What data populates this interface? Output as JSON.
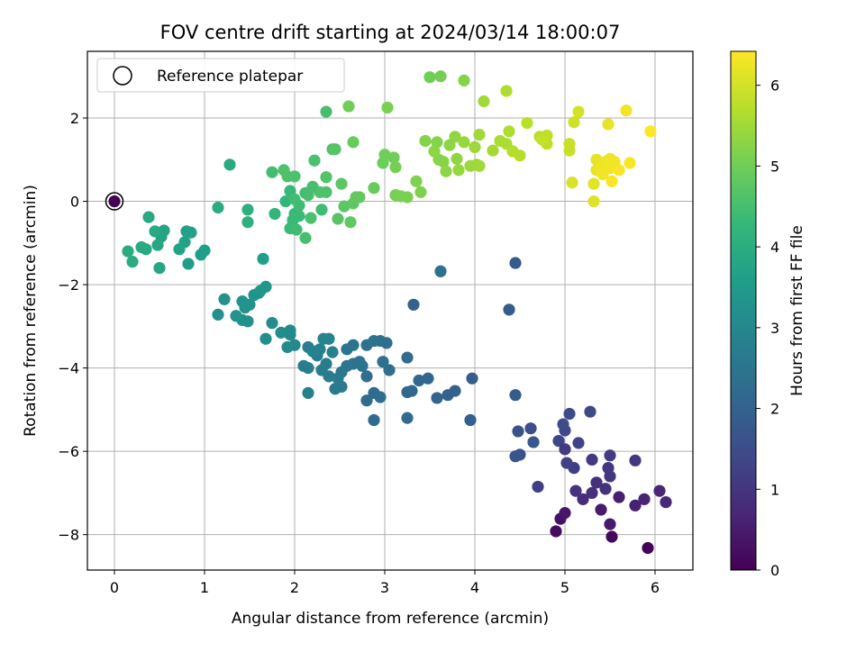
{
  "chart_data": {
    "type": "scatter",
    "title": "FOV centre drift starting at 2024/03/14 18:00:07",
    "xlabel": "Angular distance from reference (arcmin)",
    "ylabel": "Rotation from reference (arcmin)",
    "xlim": [
      -0.3,
      6.42
    ],
    "ylim": [
      -8.85,
      3.6
    ],
    "xticks": [
      0,
      1,
      2,
      3,
      4,
      5,
      6
    ],
    "yticks": [
      -8,
      -6,
      -4,
      -2,
      0,
      2
    ],
    "grid": true,
    "legend": {
      "placement": "top-left",
      "label": "Reference platepar"
    },
    "colorbar": {
      "label": "Hours from first FF file",
      "min": 0,
      "max": 6.42,
      "ticks": [
        0,
        1,
        2,
        3,
        4,
        5,
        6
      ],
      "colormap": "viridis"
    },
    "reference_point": {
      "x": 0,
      "y": 0
    },
    "point_color_stops": [
      "#440154",
      "#482878",
      "#3e4a89",
      "#31688e",
      "#26828e",
      "#1f9e89",
      "#35b779",
      "#6ece58",
      "#b5de2b",
      "#fde725"
    ],
    "series": [
      {
        "points": [
          [
            5.92,
            -8.32
          ],
          [
            5.52,
            -8.05
          ],
          [
            4.9,
            -7.92
          ],
          [
            4.95,
            -7.62
          ],
          [
            5.0,
            -7.48
          ],
          [
            5.5,
            -7.75
          ],
          [
            5.4,
            -7.4
          ],
          [
            5.6,
            -7.1
          ],
          [
            5.78,
            -7.3
          ],
          [
            5.88,
            -7.15
          ],
          [
            6.05,
            -6.95
          ],
          [
            6.12,
            -7.22
          ],
          [
            5.2,
            -7.15
          ],
          [
            5.3,
            -7.0
          ],
          [
            5.45,
            -6.9
          ],
          [
            5.12,
            -6.95
          ],
          [
            5.5,
            -6.6
          ],
          [
            5.48,
            -6.4
          ],
          [
            5.3,
            -6.2
          ],
          [
            5.5,
            -6.1
          ],
          [
            5.1,
            -6.4
          ],
          [
            5.02,
            -6.28
          ],
          [
            5.15,
            -5.8
          ],
          [
            4.93,
            -5.75
          ],
          [
            5.0,
            -5.5
          ],
          [
            5.05,
            -5.1
          ],
          [
            4.98,
            -5.35
          ],
          [
            4.62,
            -5.45
          ],
          [
            4.48,
            -5.52
          ],
          [
            4.5,
            -6.08
          ],
          [
            4.45,
            -6.12
          ],
          [
            4.65,
            -5.78
          ],
          [
            5.28,
            -5.05
          ],
          [
            5.78,
            -6.22
          ],
          [
            4.7,
            -6.85
          ],
          [
            5.35,
            -6.75
          ],
          [
            5.0,
            -5.95
          ]
        ],
        "hours": [
          0.05,
          0.15,
          0.2,
          0.3,
          0.4,
          0.45,
          0.5,
          0.55,
          0.6,
          0.65,
          0.7,
          0.75,
          0.8,
          0.85,
          0.9,
          0.95,
          1.0,
          1.05,
          1.1,
          1.15,
          1.2,
          1.25,
          1.3,
          1.35,
          1.4,
          1.45,
          1.5,
          1.55,
          1.6,
          1.65,
          1.7,
          1.75,
          1.4,
          1.0,
          1.2,
          0.9,
          1.1
        ]
      },
      {
        "points": [
          [
            4.45,
            -4.65
          ],
          [
            3.97,
            -4.25
          ],
          [
            3.95,
            -5.25
          ],
          [
            3.7,
            -4.65
          ],
          [
            3.78,
            -4.55
          ],
          [
            3.58,
            -4.72
          ],
          [
            3.48,
            -4.25
          ],
          [
            3.38,
            -4.3
          ],
          [
            3.3,
            -4.55
          ],
          [
            3.25,
            -4.58
          ],
          [
            3.25,
            -5.2
          ],
          [
            2.88,
            -5.25
          ],
          [
            2.8,
            -4.78
          ],
          [
            2.88,
            -4.6
          ],
          [
            2.95,
            -4.7
          ],
          [
            3.05,
            -4.05
          ],
          [
            2.98,
            -3.85
          ],
          [
            3.02,
            -3.4
          ],
          [
            2.95,
            -3.35
          ],
          [
            2.8,
            -3.45
          ],
          [
            2.88,
            -3.35
          ],
          [
            2.65,
            -3.45
          ],
          [
            2.58,
            -3.55
          ],
          [
            2.65,
            -3.9
          ],
          [
            2.58,
            -3.95
          ],
          [
            2.52,
            -4.1
          ],
          [
            2.48,
            -4.25
          ],
          [
            2.45,
            -4.5
          ],
          [
            2.52,
            -4.45
          ],
          [
            2.38,
            -4.2
          ],
          [
            2.35,
            -3.9
          ],
          [
            2.3,
            -4.05
          ],
          [
            2.25,
            -3.7
          ],
          [
            2.15,
            -3.5
          ],
          [
            2.15,
            -4.0
          ],
          [
            2.15,
            -4.6
          ],
          [
            2.2,
            -3.6
          ],
          [
            2.28,
            -3.55
          ],
          [
            2.38,
            -3.3
          ],
          [
            2.32,
            -3.3
          ],
          [
            2.72,
            -3.85
          ],
          [
            2.75,
            -3.95
          ],
          [
            2.8,
            -4.2
          ],
          [
            3.25,
            -3.75
          ],
          [
            3.32,
            -2.48
          ],
          [
            3.62,
            -1.68
          ],
          [
            4.38,
            -2.6
          ],
          [
            4.45,
            -1.48
          ],
          [
            2.1,
            -3.95
          ],
          [
            2.42,
            -3.62
          ]
        ],
        "hours": [
          1.85,
          1.9,
          1.95,
          2.0,
          2.0,
          2.05,
          2.1,
          2.1,
          2.15,
          2.15,
          2.2,
          2.2,
          2.25,
          2.25,
          2.3,
          2.3,
          2.35,
          2.35,
          2.4,
          2.4,
          2.45,
          2.45,
          2.5,
          2.5,
          2.55,
          2.55,
          2.6,
          2.6,
          2.65,
          2.65,
          2.7,
          2.7,
          2.75,
          2.75,
          2.8,
          2.8,
          2.85,
          2.85,
          2.9,
          2.9,
          2.5,
          2.45,
          2.3,
          2.2,
          2.0,
          2.4,
          1.85,
          1.8,
          2.7,
          2.8
        ]
      },
      {
        "points": [
          [
            1.95,
            -3.2
          ],
          [
            2.0,
            -3.45
          ],
          [
            1.92,
            -3.5
          ],
          [
            1.95,
            -3.1
          ],
          [
            1.85,
            -3.15
          ],
          [
            1.75,
            -2.92
          ],
          [
            1.68,
            -3.3
          ],
          [
            1.48,
            -2.88
          ],
          [
            1.42,
            -2.85
          ],
          [
            1.45,
            -2.55
          ],
          [
            1.5,
            -2.48
          ],
          [
            1.42,
            -2.4
          ],
          [
            1.35,
            -2.75
          ],
          [
            1.55,
            -2.25
          ],
          [
            1.6,
            -2.2
          ],
          [
            1.62,
            -2.15
          ],
          [
            1.68,
            -2.05
          ],
          [
            1.65,
            -1.38
          ],
          [
            1.22,
            -2.35
          ],
          [
            1.15,
            -2.72
          ]
        ],
        "hours": [
          3.0,
          3.0,
          3.05,
          3.05,
          3.1,
          3.1,
          3.15,
          3.2,
          3.2,
          3.25,
          3.25,
          3.3,
          3.3,
          3.35,
          3.35,
          3.4,
          3.4,
          3.6,
          3.3,
          3.2
        ]
      },
      {
        "points": [
          [
            0.82,
            -1.5
          ],
          [
            1.0,
            -1.18
          ],
          [
            0.96,
            -1.28
          ],
          [
            0.8,
            -0.72
          ],
          [
            0.85,
            -0.75
          ],
          [
            0.72,
            -1.15
          ],
          [
            0.78,
            -0.98
          ],
          [
            0.55,
            -0.7
          ],
          [
            0.52,
            -0.85
          ],
          [
            0.48,
            -1.05
          ],
          [
            0.5,
            -1.6
          ],
          [
            0.45,
            -0.72
          ],
          [
            0.38,
            -0.38
          ],
          [
            0.35,
            -1.15
          ],
          [
            0.3,
            -1.1
          ],
          [
            0.2,
            -1.45
          ],
          [
            0.15,
            -1.2
          ],
          [
            1.15,
            -0.15
          ],
          [
            1.48,
            -0.2
          ],
          [
            1.48,
            -0.5
          ],
          [
            1.28,
            0.88
          ]
        ],
        "hours": [
          3.55,
          3.6,
          3.6,
          3.65,
          3.65,
          3.7,
          3.7,
          3.75,
          3.75,
          3.8,
          3.8,
          3.85,
          3.85,
          3.9,
          3.9,
          3.95,
          3.95,
          4.0,
          4.05,
          4.1,
          3.9
        ]
      },
      {
        "points": [
          [
            1.78,
            -0.3
          ],
          [
            1.9,
            0.0
          ],
          [
            1.95,
            0.25
          ],
          [
            2.0,
            -0.3
          ],
          [
            1.98,
            -0.45
          ],
          [
            1.95,
            -0.65
          ],
          [
            2.02,
            -0.68
          ],
          [
            2.05,
            -0.1
          ],
          [
            2.0,
            0.05
          ],
          [
            2.12,
            0.2
          ],
          [
            2.12,
            -0.88
          ],
          [
            2.15,
            0.15
          ],
          [
            2.18,
            -0.4
          ],
          [
            2.22,
            0.98
          ],
          [
            2.28,
            0.22
          ],
          [
            2.35,
            0.22
          ],
          [
            2.35,
            0.58
          ],
          [
            2.42,
            1.25
          ],
          [
            2.45,
            1.25
          ],
          [
            2.48,
            -0.42
          ],
          [
            2.52,
            0.42
          ],
          [
            2.55,
            -0.12
          ],
          [
            2.62,
            -0.5
          ],
          [
            2.65,
            -0.05
          ],
          [
            2.68,
            0.1
          ],
          [
            2.72,
            0.1
          ],
          [
            2.6,
            2.28
          ],
          [
            2.65,
            1.42
          ],
          [
            2.35,
            2.15
          ],
          [
            1.88,
            0.75
          ],
          [
            1.92,
            0.6
          ],
          [
            2.0,
            0.6
          ],
          [
            1.75,
            0.7
          ],
          [
            2.05,
            -0.35
          ],
          [
            2.2,
            0.35
          ],
          [
            2.3,
            -0.2
          ]
        ],
        "hours": [
          4.2,
          4.25,
          4.3,
          4.3,
          4.35,
          4.35,
          4.4,
          4.4,
          4.45,
          4.45,
          4.5,
          4.5,
          4.55,
          4.55,
          4.6,
          4.6,
          4.65,
          4.65,
          4.7,
          4.7,
          4.75,
          4.75,
          4.8,
          4.8,
          4.85,
          4.85,
          5.0,
          4.9,
          4.5,
          4.6,
          4.6,
          4.55,
          4.45,
          4.35,
          4.5,
          4.4
        ]
      },
      {
        "points": [
          [
            2.88,
            0.32
          ],
          [
            2.98,
            0.92
          ],
          [
            3.0,
            1.12
          ],
          [
            3.1,
            1.05
          ],
          [
            3.12,
            0.82
          ],
          [
            3.12,
            0.15
          ],
          [
            3.18,
            0.12
          ],
          [
            3.25,
            0.1
          ],
          [
            3.35,
            0.48
          ],
          [
            3.4,
            0.22
          ],
          [
            3.45,
            1.45
          ],
          [
            3.58,
            1.42
          ],
          [
            3.6,
            1.0
          ],
          [
            3.65,
            0.95
          ],
          [
            3.68,
            0.72
          ],
          [
            3.72,
            1.35
          ],
          [
            3.78,
            1.55
          ],
          [
            3.8,
            1.02
          ],
          [
            3.82,
            0.75
          ],
          [
            3.88,
            1.42
          ],
          [
            3.95,
            0.85
          ],
          [
            4.02,
            0.88
          ],
          [
            4.05,
            1.6
          ],
          [
            4.05,
            0.85
          ],
          [
            3.03,
            2.25
          ],
          [
            3.5,
            2.98
          ],
          [
            3.62,
            3.0
          ],
          [
            3.88,
            2.9
          ],
          [
            4.1,
            2.4
          ],
          [
            4.2,
            1.22
          ],
          [
            4.28,
            1.45
          ],
          [
            4.35,
            1.38
          ],
          [
            4.35,
            2.65
          ],
          [
            4.38,
            1.68
          ],
          [
            4.42,
            1.2
          ],
          [
            4.5,
            1.1
          ],
          [
            4.58,
            1.88
          ],
          [
            4.72,
            1.55
          ],
          [
            4.8,
            1.38
          ],
          [
            4.8,
            1.58
          ],
          [
            4.75,
            1.48
          ],
          [
            5.05,
            1.38
          ],
          [
            5.05,
            1.22
          ],
          [
            5.1,
            1.9
          ],
          [
            5.15,
            2.15
          ],
          [
            5.08,
            0.45
          ],
          [
            5.32,
            0.0
          ],
          [
            5.32,
            0.42
          ],
          [
            5.35,
            0.75
          ],
          [
            5.35,
            1.0
          ],
          [
            5.4,
            0.82
          ],
          [
            5.45,
            0.95
          ],
          [
            5.5,
            0.8
          ],
          [
            5.5,
            1.02
          ],
          [
            5.55,
            0.95
          ],
          [
            5.52,
            0.48
          ],
          [
            5.6,
            0.75
          ],
          [
            5.48,
            1.85
          ],
          [
            5.68,
            2.18
          ],
          [
            5.72,
            0.92
          ],
          [
            5.95,
            1.68
          ],
          [
            5.42,
            0.65
          ],
          [
            3.55,
            1.2
          ],
          [
            4.0,
            1.3
          ]
        ],
        "hours": [
          4.9,
          4.95,
          5.0,
          5.0,
          5.05,
          5.05,
          5.1,
          5.1,
          5.15,
          5.15,
          5.2,
          5.2,
          5.25,
          5.25,
          5.3,
          5.3,
          5.35,
          5.35,
          5.4,
          5.4,
          5.45,
          5.45,
          5.5,
          5.5,
          5.1,
          5.0,
          5.05,
          5.2,
          5.5,
          5.55,
          5.6,
          5.6,
          5.65,
          5.65,
          5.7,
          5.7,
          5.75,
          5.75,
          5.8,
          5.8,
          5.85,
          5.9,
          5.9,
          5.95,
          6.0,
          6.05,
          6.1,
          6.15,
          6.2,
          6.2,
          6.25,
          6.25,
          6.3,
          6.3,
          6.3,
          6.35,
          6.35,
          6.2,
          6.3,
          6.35,
          6.4,
          6.3,
          5.3,
          5.45
        ]
      }
    ]
  }
}
